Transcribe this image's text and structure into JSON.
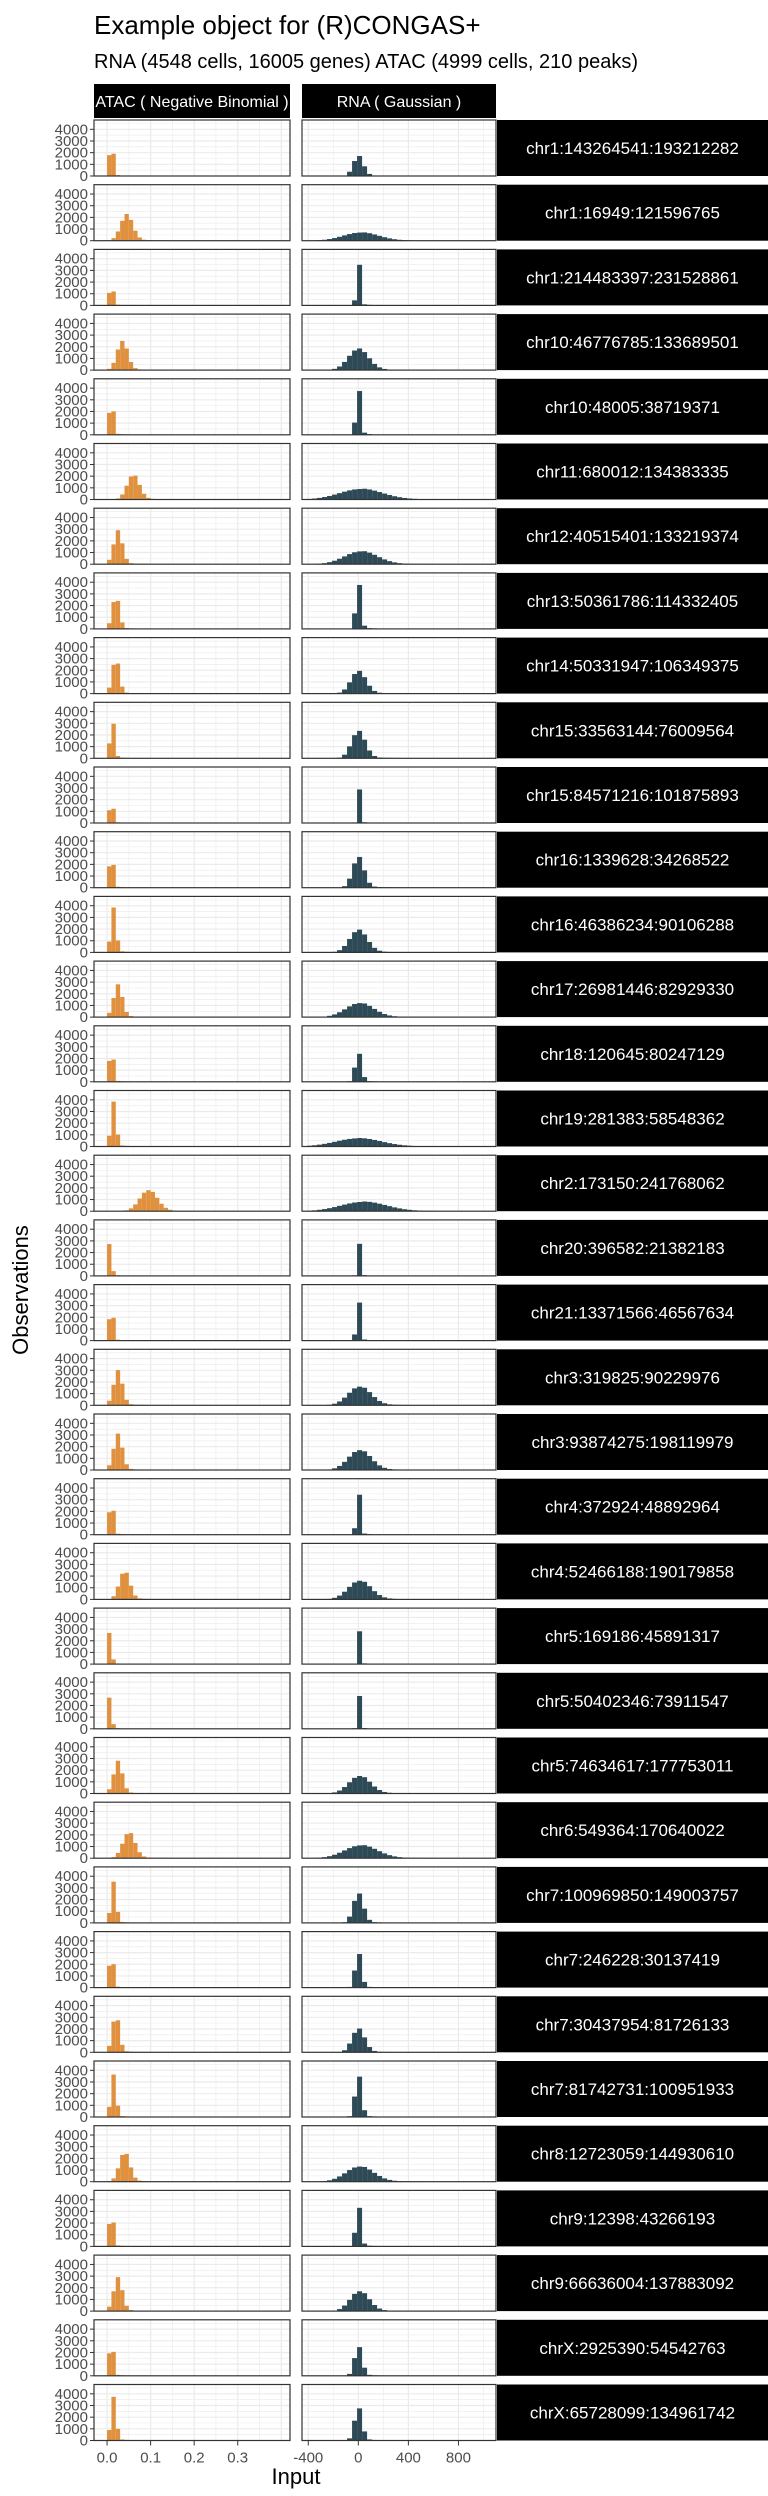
{
  "title": "Example object for (R)CONGAS+",
  "subtitle": "RNA (4548 cells, 16005 genes) ATAC (4999 cells, 210 peaks)",
  "colors": {
    "atac": "#e0913f",
    "rna": "#2e4a57",
    "strip": "#000000",
    "strip_text": "#ffffff",
    "grid": "#ebebeb",
    "frame": "#333333"
  },
  "chart_data": {
    "type": "histogram-facet-grid",
    "xlabel": "Input",
    "ylabel": "Observations",
    "columns": [
      {
        "label": "ATAC ( Negative Binomial )",
        "xlim": [
          -0.03,
          0.42
        ],
        "xticks": [
          0.0,
          0.1,
          0.2,
          0.3
        ],
        "xtick_labels": [
          "0.0",
          "0.1",
          "0.2",
          "0.3"
        ],
        "bin_width": 0.01
      },
      {
        "label": "RNA ( Gaussian )",
        "xlim": [
          -450,
          1100
        ],
        "xticks": [
          -400,
          0,
          400,
          800
        ],
        "xtick_labels": [
          "-400",
          "0",
          "400",
          "800"
        ],
        "bin_width": 40
      }
    ],
    "ylim": [
      0,
      4800
    ],
    "yticks": [
      0,
      1000,
      2000,
      3000,
      4000
    ],
    "ytick_labels": [
      "0",
      "1000",
      "2000",
      "3000",
      "4000"
    ],
    "rows": [
      {
        "label": "chr1:143264541:193212282",
        "atac": {
          "center": 0.01,
          "spread": 0.004,
          "peak": 3900
        },
        "rna": {
          "center": 0,
          "spread": 40,
          "peak": 1700
        }
      },
      {
        "label": "chr1:16949:121596765",
        "atac": {
          "center": 0.045,
          "spread": 0.014,
          "peak": 2200
        },
        "rna": {
          "center": 20,
          "spread": 140,
          "peak": 700
        }
      },
      {
        "label": "chr1:214483397:231528861",
        "atac": {
          "center": 0.01,
          "spread": 0.003,
          "peak": 4300
        },
        "rna": {
          "center": 0,
          "spread": 14,
          "peak": 4300
        }
      },
      {
        "label": "chr10:46776785:133689501",
        "atac": {
          "center": 0.035,
          "spread": 0.012,
          "peak": 2500
        },
        "rna": {
          "center": 0,
          "spread": 80,
          "peak": 1800
        }
      },
      {
        "label": "chr10:48005:38719371",
        "atac": {
          "center": 0.01,
          "spread": 0.004,
          "peak": 4100
        },
        "rna": {
          "center": 0,
          "spread": 18,
          "peak": 4200
        }
      },
      {
        "label": "chr11:680012:134383335",
        "atac": {
          "center": 0.06,
          "spread": 0.014,
          "peak": 2100
        },
        "rna": {
          "center": 20,
          "spread": 170,
          "peak": 900
        }
      },
      {
        "label": "chr12:40515401:133219374",
        "atac": {
          "center": 0.025,
          "spread": 0.01,
          "peak": 2800
        },
        "rna": {
          "center": 20,
          "spread": 130,
          "peak": 1100
        }
      },
      {
        "label": "chr13:50361786:114332405",
        "atac": {
          "center": 0.02,
          "spread": 0.008,
          "peak": 2800
        },
        "rna": {
          "center": 0,
          "spread": 20,
          "peak": 4100
        }
      },
      {
        "label": "chr14:50331947:106349375",
        "atac": {
          "center": 0.02,
          "spread": 0.008,
          "peak": 3000
        },
        "rna": {
          "center": 0,
          "spread": 60,
          "peak": 1900
        }
      },
      {
        "label": "chr15:33563144:76009564",
        "atac": {
          "center": 0.012,
          "spread": 0.005,
          "peak": 3400
        },
        "rna": {
          "center": 0,
          "spread": 55,
          "peak": 2300
        }
      },
      {
        "label": "chr15:84571216:101875893",
        "atac": {
          "center": 0.01,
          "spread": 0.003,
          "peak": 4400
        },
        "rna": {
          "center": 0,
          "spread": 10,
          "peak": 4500
        }
      },
      {
        "label": "chr16:1339628:34268522",
        "atac": {
          "center": 0.01,
          "spread": 0.004,
          "peak": 4000
        },
        "rna": {
          "center": 0,
          "spread": 45,
          "peak": 2600
        }
      },
      {
        "label": "chr16:46386234:90106288",
        "atac": {
          "center": 0.015,
          "spread": 0.006,
          "peak": 3700
        },
        "rna": {
          "center": 0,
          "spread": 70,
          "peak": 1900
        }
      },
      {
        "label": "chr17:26981446:82929330",
        "atac": {
          "center": 0.025,
          "spread": 0.01,
          "peak": 2700
        },
        "rna": {
          "center": 10,
          "spread": 110,
          "peak": 1200
        }
      },
      {
        "label": "chr18:120645:80247129",
        "atac": {
          "center": 0.01,
          "spread": 0.004,
          "peak": 3900
        },
        "rna": {
          "center": 0,
          "spread": 25,
          "peak": 2500
        }
      },
      {
        "label": "chr19:281383:58548362",
        "atac": {
          "center": 0.015,
          "spread": 0.006,
          "peak": 3700
        },
        "rna": {
          "center": 0,
          "spread": 180,
          "peak": 700
        }
      },
      {
        "label": "chr2:173150:241768062",
        "atac": {
          "center": 0.095,
          "spread": 0.02,
          "peak": 1800
        },
        "rna": {
          "center": 40,
          "spread": 180,
          "peak": 800
        }
      },
      {
        "label": "chr20:396582:21382183",
        "atac": {
          "center": 0.008,
          "spread": 0.003,
          "peak": 4500
        },
        "rna": {
          "center": 0,
          "spread": 10,
          "peak": 4300
        }
      },
      {
        "label": "chr21:13371566:46567634",
        "atac": {
          "center": 0.01,
          "spread": 0.004,
          "peak": 4000
        },
        "rna": {
          "center": 0,
          "spread": 15,
          "peak": 3900
        }
      },
      {
        "label": "chr3:319825:90229976",
        "atac": {
          "center": 0.025,
          "spread": 0.01,
          "peak": 2900
        },
        "rna": {
          "center": 10,
          "spread": 90,
          "peak": 1600
        }
      },
      {
        "label": "chr3:93874275:198119979",
        "atac": {
          "center": 0.025,
          "spread": 0.01,
          "peak": 3000
        },
        "rna": {
          "center": 10,
          "spread": 90,
          "peak": 1700
        }
      },
      {
        "label": "chr4:372924:48892964",
        "atac": {
          "center": 0.01,
          "spread": 0.004,
          "peak": 4200
        },
        "rna": {
          "center": 0,
          "spread": 15,
          "peak": 4100
        }
      },
      {
        "label": "chr4:52466188:190179858",
        "atac": {
          "center": 0.04,
          "spread": 0.012,
          "peak": 2400
        },
        "rna": {
          "center": 10,
          "spread": 90,
          "peak": 1600
        }
      },
      {
        "label": "chr5:169186:45891317",
        "atac": {
          "center": 0.008,
          "spread": 0.003,
          "peak": 4400
        },
        "rna": {
          "center": 0,
          "spread": 10,
          "peak": 4400
        }
      },
      {
        "label": "chr5:50402346:73911547",
        "atac": {
          "center": 0.008,
          "spread": 0.003,
          "peak": 4400
        },
        "rna": {
          "center": 0,
          "spread": 10,
          "peak": 4400
        }
      },
      {
        "label": "chr5:74634617:177753011",
        "atac": {
          "center": 0.025,
          "spread": 0.01,
          "peak": 2700
        },
        "rna": {
          "center": 10,
          "spread": 85,
          "peak": 1500
        }
      },
      {
        "label": "chr6:549364:170640022",
        "atac": {
          "center": 0.05,
          "spread": 0.014,
          "peak": 2200
        },
        "rna": {
          "center": 20,
          "spread": 130,
          "peak": 1100
        }
      },
      {
        "label": "chr7:100969850:149003757",
        "atac": {
          "center": 0.015,
          "spread": 0.006,
          "peak": 3400
        },
        "rna": {
          "center": 0,
          "spread": 40,
          "peak": 2500
        }
      },
      {
        "label": "chr7:246228:30137419",
        "atac": {
          "center": 0.01,
          "spread": 0.004,
          "peak": 4100
        },
        "rna": {
          "center": 0,
          "spread": 25,
          "peak": 3000
        }
      },
      {
        "label": "chr7:30437954:81726133",
        "atac": {
          "center": 0.02,
          "spread": 0.008,
          "peak": 3200
        },
        "rna": {
          "center": 0,
          "spread": 50,
          "peak": 2000
        }
      },
      {
        "label": "chr7:81742731:100951933",
        "atac": {
          "center": 0.015,
          "spread": 0.006,
          "peak": 3500
        },
        "rna": {
          "center": 0,
          "spread": 25,
          "peak": 3600
        }
      },
      {
        "label": "chr8:12723059:144930610",
        "atac": {
          "center": 0.04,
          "spread": 0.012,
          "peak": 2500
        },
        "rna": {
          "center": 10,
          "spread": 110,
          "peak": 1300
        }
      },
      {
        "label": "chr9:12398:43266193",
        "atac": {
          "center": 0.01,
          "spread": 0.004,
          "peak": 4200
        },
        "rna": {
          "center": 0,
          "spread": 20,
          "peak": 3600
        }
      },
      {
        "label": "chr9:66636004:137883092",
        "atac": {
          "center": 0.025,
          "spread": 0.01,
          "peak": 2800
        },
        "rna": {
          "center": 10,
          "spread": 75,
          "peak": 1700
        }
      },
      {
        "label": "chrX:2925390:54542763",
        "atac": {
          "center": 0.01,
          "spread": 0.004,
          "peak": 4200
        },
        "rna": {
          "center": 0,
          "spread": 30,
          "peak": 2500
        }
      },
      {
        "label": "chrX:65728099:134961742",
        "atac": {
          "center": 0.015,
          "spread": 0.006,
          "peak": 3600
        },
        "rna": {
          "center": 0,
          "spread": 30,
          "peak": 2800
        }
      }
    ]
  }
}
